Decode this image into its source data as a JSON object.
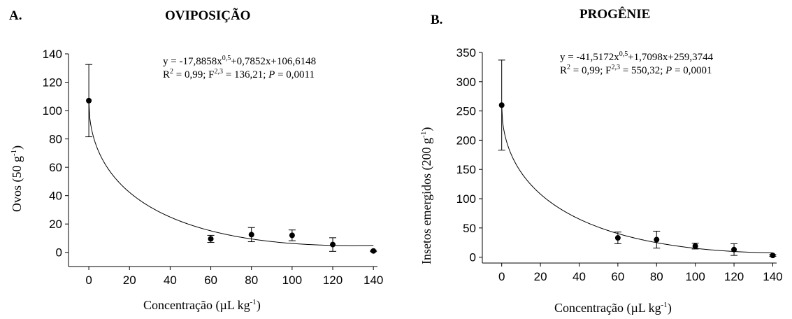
{
  "chart_data": [
    {
      "type": "scatter",
      "letter": "A.",
      "title": "OVIPOSIÇÃO",
      "xlabel_text": "Concentração (µL kg",
      "xlabel_sup": "-1",
      "xlabel_tail": ")",
      "ylabel_text": "Ovos (50 g",
      "ylabel_sup": "-1",
      "ylabel_tail": ")",
      "eq_line1": {
        "a": "y = -17,8858x",
        "sup": "0,5",
        "b": "+0,7852x+106,6148"
      },
      "eq_line2": {
        "r": "R",
        "rsup": "2",
        "mid": " = 0,99; F",
        "fsup": "2,3",
        "fval": " = 136,21; ",
        "p": "P",
        "pval": " = 0,0011"
      },
      "x_ticks": [
        0,
        20,
        40,
        60,
        80,
        100,
        120,
        140
      ],
      "y_ticks": [
        0,
        20,
        40,
        60,
        80,
        100,
        120,
        140
      ],
      "xlim": [
        -10,
        142
      ],
      "ylim": [
        -10,
        140
      ],
      "x": [
        0,
        60,
        80,
        100,
        120,
        140
      ],
      "y": [
        107,
        9.5,
        12.5,
        12,
        5.5,
        1
      ],
      "err": [
        25.5,
        2.5,
        5,
        3.8,
        4.8,
        0.5
      ],
      "fit": {
        "a": -17.8858,
        "b": 0.7852,
        "c": 106.6148
      }
    },
    {
      "type": "scatter",
      "letter": "B.",
      "title": "PROGÊNIE",
      "xlabel_text": "Concentração (µL kg",
      "xlabel_sup": "-1",
      "xlabel_tail": ")",
      "ylabel_text": "Insetos emergidos (200 g",
      "ylabel_sup": "-1",
      "ylabel_tail": ")",
      "eq_line1": {
        "a": "y = -41,5172x",
        "sup": "0,5",
        "b": "+1,7098x+259,3744"
      },
      "eq_line2": {
        "r": "R",
        "rsup": "2",
        "mid": " = 0,99; F",
        "fsup": "2,3",
        "fval": " = 550,32; ",
        "p": "P",
        "pval": " = 0,0001"
      },
      "x_ticks": [
        0,
        20,
        40,
        60,
        80,
        100,
        120,
        140
      ],
      "y_ticks": [
        0,
        50,
        100,
        150,
        200,
        250,
        300,
        350
      ],
      "xlim": [
        -10,
        142
      ],
      "ylim": [
        -10,
        350
      ],
      "x": [
        0,
        60,
        80,
        100,
        120,
        140
      ],
      "y": [
        260,
        33,
        30,
        19,
        13,
        3
      ],
      "err": [
        77,
        10,
        14.5,
        5,
        10,
        1.5
      ],
      "fit": {
        "a": -41.5172,
        "b": 1.7098,
        "c": 259.3744
      }
    }
  ]
}
